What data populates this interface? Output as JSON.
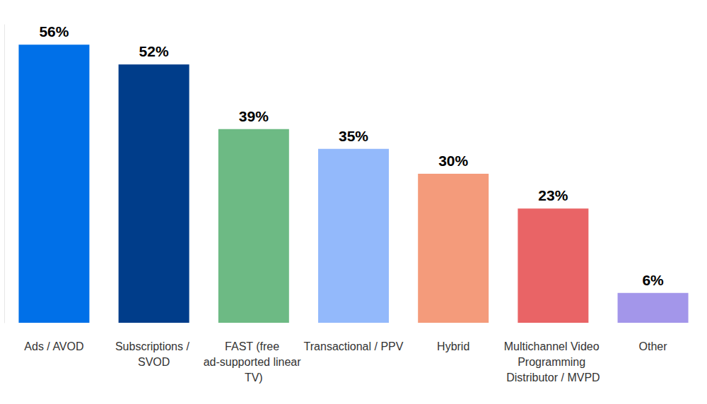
{
  "chart_data": {
    "type": "bar",
    "categories": [
      "Ads / AVOD",
      "Subscriptions / SVOD",
      "FAST (free ad-supported linear TV)",
      "Transactional / PPV",
      "Hybrid",
      "Multichannel Video Programming Distributor / MVPD",
      "Other"
    ],
    "values": [
      56,
      52,
      39,
      35,
      30,
      23,
      6
    ],
    "value_labels": [
      "56%",
      "52%",
      "39%",
      "35%",
      "30%",
      "23%",
      "6%"
    ],
    "colors": [
      "#0070e8",
      "#003d8a",
      "#6dba84",
      "#93b9fb",
      "#f49b7b",
      "#e96466",
      "#a396ea"
    ],
    "ylim": [
      0,
      60
    ],
    "yticks": [],
    "grid": false,
    "data_labels": true,
    "tick_labels": "x"
  }
}
